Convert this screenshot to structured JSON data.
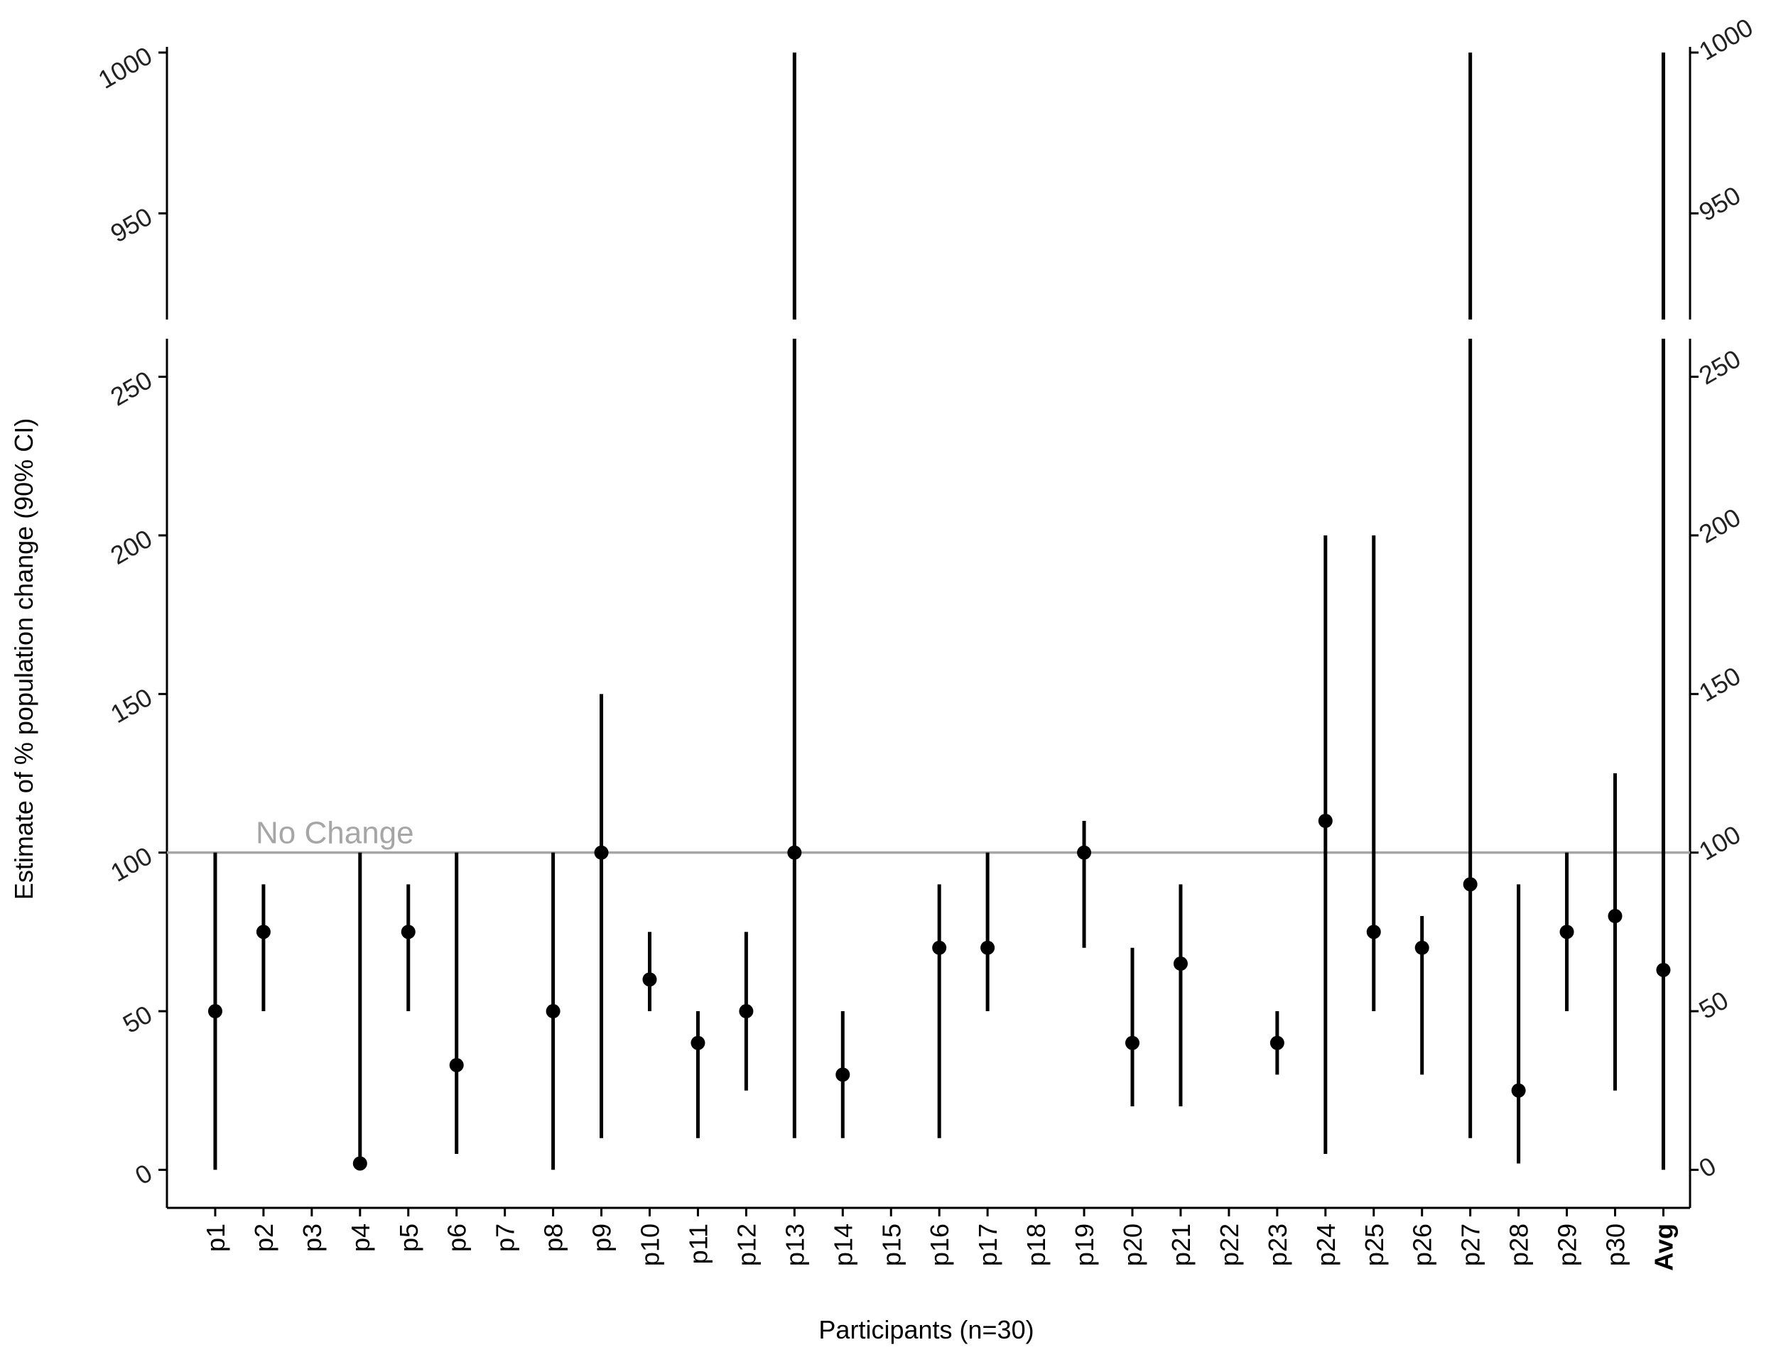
{
  "chart_data": {
    "type": "errorbar",
    "x_label": "Participants (n=30)",
    "y_label": "Estimate of % population change (90% CI)",
    "categories": [
      "p1",
      "p2",
      "p3",
      "p4",
      "p5",
      "p6",
      "p7",
      "p8",
      "p9",
      "p10",
      "p11",
      "p12",
      "p13",
      "p14",
      "p15",
      "p16",
      "p17",
      "p18",
      "p19",
      "p20",
      "p21",
      "p22",
      "p23",
      "p24",
      "p25",
      "p26",
      "p27",
      "p28",
      "p29",
      "p30",
      "Avg"
    ],
    "bold_categories": [
      "Avg"
    ],
    "series": [
      {
        "color": "#000000",
        "values": [
          50,
          75,
          null,
          2,
          75,
          33,
          null,
          50,
          100,
          60,
          40,
          50,
          100,
          30,
          null,
          70,
          70,
          null,
          100,
          40,
          65,
          null,
          40,
          110,
          75,
          70,
          90,
          25,
          75,
          80,
          63
        ],
        "ci_low": [
          0,
          50,
          null,
          2,
          50,
          5,
          null,
          0,
          10,
          50,
          10,
          25,
          10,
          10,
          null,
          10,
          50,
          null,
          70,
          20,
          20,
          null,
          30,
          5,
          50,
          30,
          10,
          2,
          50,
          25,
          0
        ],
        "ci_high": [
          100,
          90,
          null,
          100,
          90,
          100,
          null,
          100,
          150,
          75,
          50,
          75,
          1000,
          50,
          null,
          90,
          100,
          null,
          110,
          70,
          90,
          null,
          50,
          200,
          200,
          80,
          1000,
          90,
          100,
          125,
          1000
        ]
      }
    ],
    "ylim": [
      -12,
      262
    ],
    "yticks": [
      0,
      50,
      100,
      150,
      200,
      250
    ],
    "ylim_upper": [
      917,
      1000
    ],
    "yticks_upper": [
      950,
      1000
    ],
    "reference_line": {
      "value": 100,
      "label": "No Change",
      "color": "#a6a6a6"
    }
  }
}
